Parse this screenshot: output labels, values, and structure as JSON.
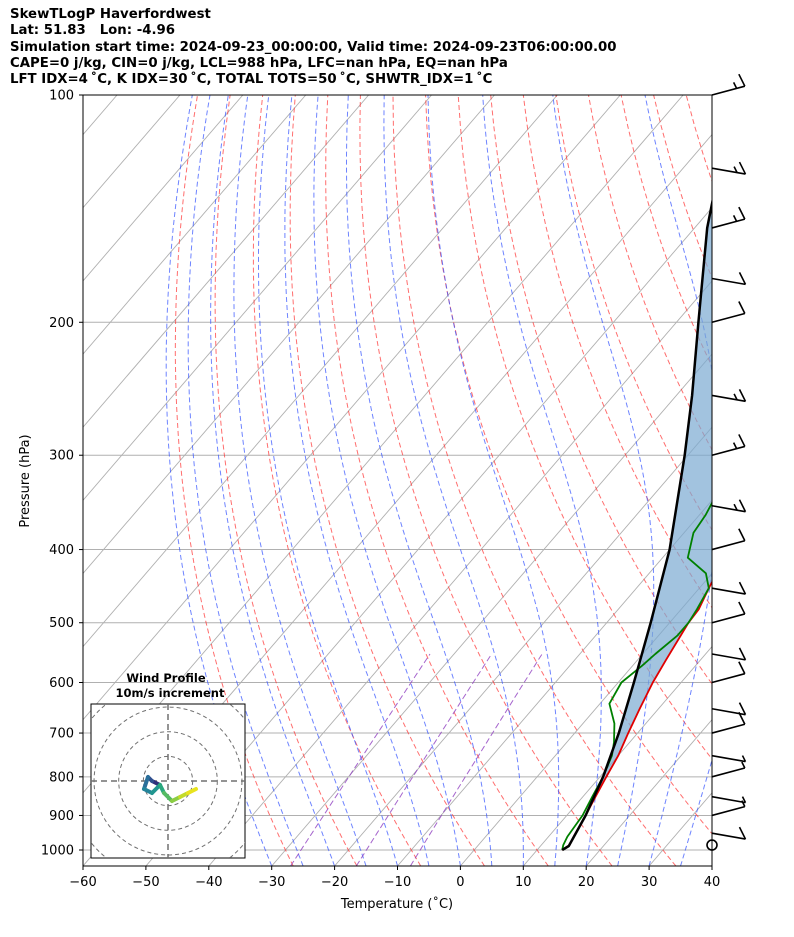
{
  "header": {
    "title": "SkewTLogP Haverfordwest",
    "latlon": "Lat: 51.83   Lon: -4.96",
    "sim_time": "Simulation start time: 2024-09-23_00:00:00, Valid time: 2024-09-23T06:00:00.00",
    "params": "CAPE=0 j/kg, CIN=0 j/kg, LCL=988 hPa, LFC=nan hPa, EQ=nan hPa",
    "indices": "LFT IDX=4 ˚C, K IDX=30 ˚C, TOTAL TOTS=50 ˚C, SHWTR_IDX=1 ˚C"
  },
  "chart_data": {
    "type": "line",
    "subtype": "skew-T log-P diagram",
    "xlabel": "Temperature (˚C)",
    "ylabel": "Pressure (hPa)",
    "xlim": [
      -60,
      40
    ],
    "ylim": [
      1050,
      100
    ],
    "x_ticks": [
      "−60",
      "−50",
      "−40",
      "−30",
      "−20",
      "−10",
      "0",
      "10",
      "20",
      "30",
      "40"
    ],
    "y_ticks": [
      "100",
      "200",
      "300",
      "400",
      "500",
      "600",
      "700",
      "800",
      "900",
      "1000"
    ],
    "y_scale": "log",
    "grid": true,
    "series": [
      {
        "key": "temperature",
        "color": "#e00000",
        "points": [
          [
            14,
            1000
          ],
          [
            14.5,
            985
          ],
          [
            14,
            960
          ],
          [
            13,
            900
          ],
          [
            12,
            850
          ],
          [
            11,
            800
          ],
          [
            10,
            750
          ],
          [
            8.5,
            700
          ],
          [
            7,
            650
          ],
          [
            5.5,
            600
          ],
          [
            4.5,
            560
          ],
          [
            3,
            500
          ],
          [
            2.8,
            480
          ],
          [
            1.5,
            450
          ],
          [
            0.3,
            420
          ],
          [
            -1,
            400
          ],
          [
            -4,
            360
          ],
          [
            -7,
            330
          ],
          [
            -9.5,
            310
          ],
          [
            -10.5,
            300
          ],
          [
            -13,
            270
          ],
          [
            -14.5,
            255
          ],
          [
            -14,
            245
          ],
          [
            -12.5,
            237
          ],
          [
            -6.5,
            225
          ],
          [
            -4.5,
            210
          ],
          [
            -3,
            195
          ],
          [
            -1.5,
            180
          ],
          [
            1.5,
            160
          ],
          [
            4,
            145
          ],
          [
            6,
            130
          ],
          [
            8.5,
            117
          ],
          [
            10.5,
            108
          ],
          [
            11.5,
            100
          ]
        ]
      },
      {
        "key": "dewpoint",
        "color": "#008000",
        "points": [
          [
            14,
            1000
          ],
          [
            13.5,
            985
          ],
          [
            13,
            960
          ],
          [
            12.5,
            900
          ],
          [
            11.5,
            850
          ],
          [
            10.5,
            800
          ],
          [
            9,
            750
          ],
          [
            7.5,
            720
          ],
          [
            5,
            680
          ],
          [
            1.5,
            640
          ],
          [
            0.5,
            600
          ],
          [
            1.5,
            570
          ],
          [
            2,
            550
          ],
          [
            3,
            520
          ],
          [
            3,
            500
          ],
          [
            2.5,
            480
          ],
          [
            1.5,
            450
          ],
          [
            -1,
            430
          ],
          [
            -6,
            410
          ],
          [
            -8.5,
            380
          ],
          [
            -9,
            360
          ],
          [
            -10,
            340
          ],
          [
            -11.5,
            310
          ],
          [
            -12,
            280
          ],
          [
            -12,
            260
          ],
          [
            -12.5,
            245
          ],
          [
            -12,
            235
          ],
          [
            -12,
            215
          ],
          [
            -14,
            200
          ],
          [
            -18,
            185
          ],
          [
            -19.5,
            175
          ],
          [
            -17.5,
            160
          ],
          [
            -15.5,
            145
          ],
          [
            -12.5,
            130
          ],
          [
            -10,
            117
          ],
          [
            -7.5,
            107
          ],
          [
            -6,
            100
          ]
        ]
      },
      {
        "key": "parcel",
        "color": "#000000",
        "points": [
          [
            14,
            1000
          ],
          [
            14.5,
            988
          ],
          [
            13,
            900
          ],
          [
            10.5,
            800
          ],
          [
            7,
            700
          ],
          [
            2.5,
            600
          ],
          [
            -3,
            500
          ],
          [
            -10,
            400
          ],
          [
            -20.5,
            300
          ],
          [
            -27.5,
            250
          ],
          [
            -36.5,
            200
          ],
          [
            -48,
            150
          ],
          [
            -62,
            100
          ]
        ]
      }
    ],
    "wind_barbs": [
      {
        "p": 100,
        "speed_kt": 15
      },
      {
        "p": 125,
        "speed_kt": 15
      },
      {
        "p": 150,
        "speed_kt": 15
      },
      {
        "p": 175,
        "speed_kt": 10
      },
      {
        "p": 200,
        "speed_kt": 10
      },
      {
        "p": 250,
        "speed_kt": 15
      },
      {
        "p": 300,
        "speed_kt": 15
      },
      {
        "p": 350,
        "speed_kt": 15
      },
      {
        "p": 400,
        "speed_kt": 10
      },
      {
        "p": 450,
        "speed_kt": 10
      },
      {
        "p": 500,
        "speed_kt": 10
      },
      {
        "p": 550,
        "speed_kt": 10
      },
      {
        "p": 600,
        "speed_kt": 10
      },
      {
        "p": 650,
        "speed_kt": 10
      },
      {
        "p": 700,
        "speed_kt": 10
      },
      {
        "p": 750,
        "speed_kt": 5
      },
      {
        "p": 800,
        "speed_kt": 5
      },
      {
        "p": 850,
        "speed_kt": 5
      },
      {
        "p": 900,
        "speed_kt": 5
      },
      {
        "p": 950,
        "speed_kt": 10
      },
      {
        "p": 985,
        "speed_kt": 0
      }
    ],
    "inset": {
      "title": "Wind Profile",
      "subtitle": "10m/s increment",
      "type": "hodograph",
      "rings": [
        10,
        20,
        30,
        40
      ],
      "points": [
        [
          -2,
          -1
        ],
        [
          -4,
          0
        ],
        [
          -5,
          1
        ],
        [
          -6,
          -2
        ],
        [
          -4,
          -3
        ],
        [
          -2,
          -1
        ],
        [
          -1,
          -3
        ],
        [
          1,
          -5
        ],
        [
          3,
          -4
        ],
        [
          5,
          -3
        ],
        [
          7,
          -2
        ]
      ]
    }
  }
}
